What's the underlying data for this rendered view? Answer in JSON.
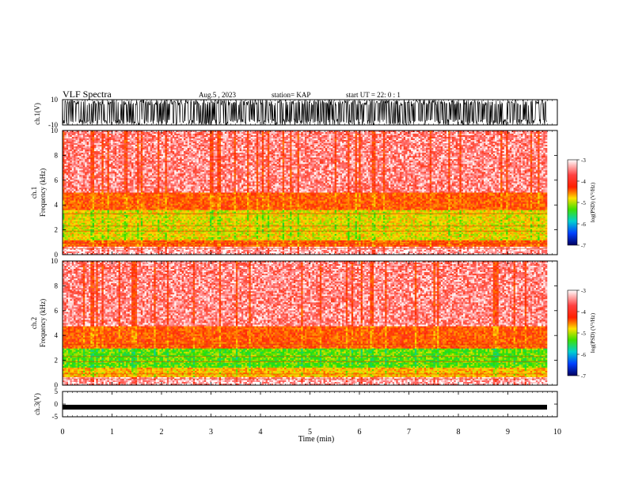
{
  "header": {
    "title": "VLF Spectra",
    "date": "Aug.5 , 2023",
    "station": "station= KAP",
    "start": "start UT = 22: 0 : 1"
  },
  "colors": {
    "spectrum_low": "#fde000",
    "spectrum_mid": "#ff2a00",
    "spectrum_high": "#ffffff",
    "spectrum_green": "#27e000",
    "waveform": "#000000"
  },
  "chart_data": [
    {
      "type": "line",
      "name": "ch.1 waveform",
      "ylabel": "ch.1(V)",
      "ylim": [
        -10,
        10
      ],
      "y_ticks": [
        "10",
        "-10"
      ],
      "xlim": [
        0,
        10
      ],
      "description_units": "V"
    },
    {
      "type": "heatmap",
      "ylabel": "ch.1\nFrequency (kHz)",
      "y_ticks": [
        "0",
        "2",
        "4",
        "6",
        "8",
        "10"
      ],
      "ylim": [
        0,
        10
      ],
      "xlim": [
        0,
        9.83
      ],
      "colorbar": {
        "label": "log(PSD) (V²/Hz)",
        "ticks": [
          "-3",
          "-4",
          "-5",
          "-6",
          "-7"
        ],
        "range": [
          -7,
          -3
        ]
      },
      "band_summary": [
        {
          "freq_khz": [
            0.0,
            0.6
          ],
          "log_psd": -3.2
        },
        {
          "freq_khz": [
            0.6,
            1.2
          ],
          "log_psd": -4.0
        },
        {
          "freq_khz": [
            1.2,
            3.6
          ],
          "log_psd": -4.6
        },
        {
          "freq_khz": [
            3.6,
            5.0
          ],
          "log_psd": -4.0
        },
        {
          "freq_khz": [
            5.0,
            10.0
          ],
          "log_psd": -3.3
        }
      ]
    },
    {
      "type": "heatmap",
      "ylabel": "ch.2\nFrequency (kHz)",
      "y_ticks": [
        "0",
        "2",
        "4",
        "6",
        "8",
        "10"
      ],
      "ylim": [
        0,
        10
      ],
      "xlim": [
        0,
        9.83
      ],
      "colorbar": {
        "label": "log(PSD) (V²/Hz)",
        "ticks": [
          "-3",
          "-4",
          "-5",
          "-6",
          "-7"
        ],
        "range": [
          -7,
          -3
        ]
      },
      "band_summary": [
        {
          "freq_khz": [
            0.0,
            0.6
          ],
          "log_psd": -3.2
        },
        {
          "freq_khz": [
            0.6,
            1.4
          ],
          "log_psd": -4.4
        },
        {
          "freq_khz": [
            1.4,
            3.0
          ],
          "log_psd": -5.0
        },
        {
          "freq_khz": [
            3.0,
            4.8
          ],
          "log_psd": -4.0
        },
        {
          "freq_khz": [
            4.8,
            10.0
          ],
          "log_psd": -3.3
        }
      ]
    },
    {
      "type": "line",
      "name": "ch.3 waveform",
      "ylabel": "ch.3(V)",
      "ylim": [
        -5,
        5
      ],
      "y_ticks": [
        "5",
        "0",
        "-5"
      ],
      "xlim": [
        0,
        10
      ],
      "approx_level_v": -1.2
    }
  ],
  "x_axis": {
    "label": "Time (min)",
    "ticks": [
      "0",
      "1",
      "2",
      "3",
      "4",
      "5",
      "6",
      "7",
      "8",
      "9",
      "10"
    ],
    "range": [
      0,
      10
    ]
  }
}
